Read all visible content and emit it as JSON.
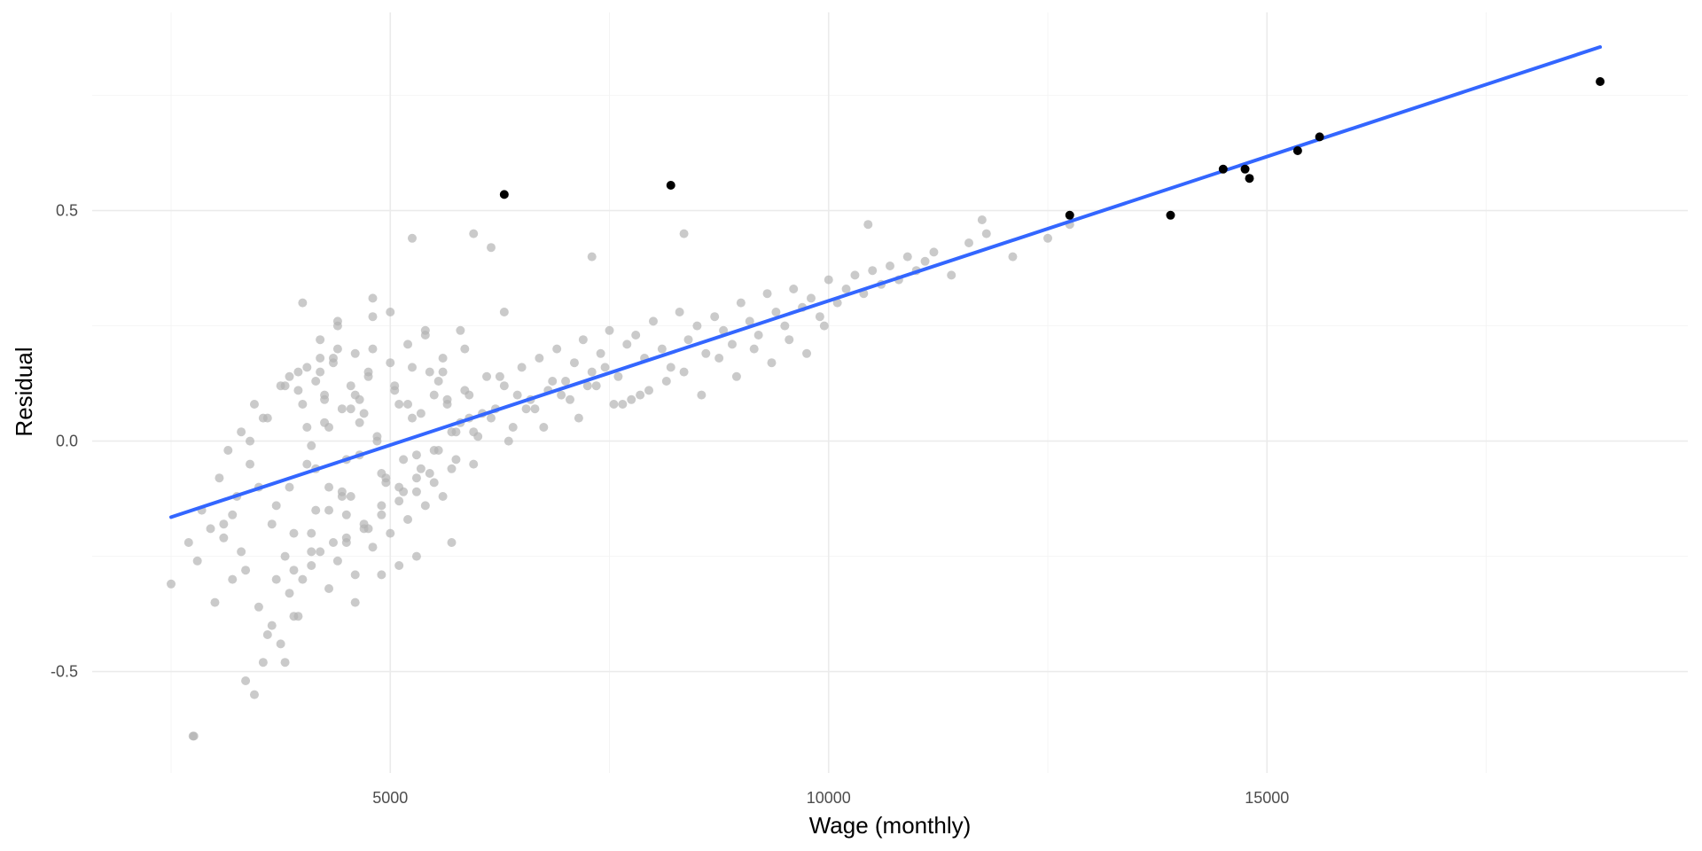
{
  "chart_data": {
    "type": "scatter",
    "title": "",
    "xlabel": "Wage (monthly)",
    "ylabel": "Residual",
    "xlim": [
      1600,
      19800
    ],
    "ylim": [
      -0.72,
      0.93
    ],
    "x_ticks": [
      5000,
      10000,
      15000
    ],
    "x_tick_labels": [
      "5000",
      "10000",
      "15000"
    ],
    "x_minor_ticks": [
      2500,
      7500,
      12500,
      17500
    ],
    "y_ticks": [
      -0.5,
      0.0,
      0.5
    ],
    "y_tick_labels": [
      "-0.5",
      "0.0",
      "0.5"
    ],
    "y_minor_ticks": [
      -0.25,
      0.25,
      0.75
    ],
    "grid": true,
    "legend": "none",
    "colors": {
      "points": "#b3b3b3",
      "highlight": "#000000",
      "fit_line": "#3366ff",
      "grid": "#ebebeb"
    },
    "series": [
      {
        "kind": "points",
        "color": "#b3b3b3",
        "opacity": 0.7,
        "x": [
          2500,
          2800,
          3100,
          2950,
          3200,
          3350,
          3500,
          3600,
          3800,
          3250,
          3050,
          2700,
          2850,
          3400,
          3700,
          3900,
          3650,
          3300,
          3150,
          3450,
          3550,
          3750,
          3850,
          3950,
          4050,
          4150,
          4250,
          4350,
          4450,
          4550,
          4650,
          4750,
          4850,
          4950,
          5050,
          5150,
          5250,
          5350,
          5450,
          5550,
          5650,
          5750,
          5850,
          5950,
          4100,
          4200,
          4300,
          4400,
          4500,
          4600,
          4700,
          4800,
          4900,
          5000,
          5100,
          5200,
          5300,
          5400,
          5500,
          5600,
          3800,
          3900,
          4000,
          4100,
          4200,
          4300,
          4400,
          4500,
          4600,
          4700,
          4800,
          4900,
          5000,
          5100,
          5200,
          5300,
          5400,
          5500,
          5600,
          5700,
          5800,
          5900,
          6000,
          6100,
          6200,
          6300,
          6400,
          6500,
          6600,
          6700,
          6800,
          6900,
          7000,
          7100,
          7200,
          7300,
          7400,
          7500,
          7600,
          7700,
          7800,
          7900,
          8000,
          8100,
          8200,
          8300,
          8400,
          8500,
          8600,
          8700,
          8800,
          8900,
          9000,
          9100,
          9200,
          9300,
          9400,
          9500,
          9600,
          9700,
          9800,
          9900,
          10000,
          10100,
          10200,
          10300,
          10400,
          10500,
          10600,
          10700,
          10800,
          10900,
          11000,
          11100,
          11200,
          11400,
          11600,
          11800,
          12100,
          12500,
          4050,
          4250,
          4450,
          4650,
          4850,
          5050,
          5250,
          5450,
          5650,
          5850,
          6050,
          6250,
          6450,
          6650,
          6850,
          7050,
          7250,
          7450,
          7650,
          7850,
          3600,
          3700,
          3800,
          3900,
          4000,
          4100,
          4200,
          4300,
          4400,
          4500,
          3500,
          3400,
          3300,
          3200,
          3100,
          3000,
          3650,
          3750,
          3850,
          3950,
          4150,
          4350,
          4550,
          4750,
          4950,
          5150,
          5350,
          5550,
          5750,
          5950,
          6150,
          6350,
          6550,
          6750,
          6950,
          7150,
          7350,
          7550,
          7750,
          7950,
          8150,
          8350,
          8550,
          8750,
          8950,
          9150,
          9350,
          9550,
          9750,
          9950,
          4000,
          4200,
          4400,
          4600,
          4800,
          5000,
          5200,
          5400,
          5600,
          5800,
          4100,
          4300,
          4500,
          4700,
          4900,
          5100,
          5300,
          5500,
          5700,
          5900,
          3850,
          3950,
          4050,
          4150,
          4250,
          4350,
          4450,
          4550,
          4650,
          4750,
          2750,
          2760,
          3350,
          3450,
          3550,
          4800,
          5250,
          5950,
          6150,
          7300,
          8350,
          10450,
          11750,
          12750,
          5300,
          5700,
          4900,
          4600,
          5100,
          6300
        ],
        "y": [
          -0.31,
          -0.26,
          -0.21,
          -0.19,
          -0.16,
          -0.28,
          -0.36,
          -0.42,
          -0.48,
          -0.12,
          -0.08,
          -0.22,
          -0.15,
          -0.05,
          -0.3,
          -0.38,
          -0.18,
          0.02,
          -0.02,
          0.08,
          0.05,
          0.12,
          -0.1,
          0.15,
          0.03,
          -0.06,
          0.1,
          0.18,
          -0.12,
          0.07,
          -0.03,
          0.14,
          0.01,
          -0.09,
          0.11,
          -0.04,
          0.16,
          0.06,
          -0.07,
          0.13,
          0.09,
          0.02,
          0.2,
          -0.05,
          -0.2,
          0.22,
          -0.15,
          0.25,
          -0.22,
          0.19,
          -0.18,
          0.27,
          -0.14,
          0.17,
          -0.1,
          0.21,
          -0.08,
          0.24,
          -0.02,
          0.18,
          -0.25,
          -0.28,
          -0.3,
          -0.27,
          -0.24,
          -0.32,
          -0.26,
          -0.21,
          -0.29,
          -0.19,
          -0.23,
          -0.16,
          -0.2,
          -0.13,
          -0.17,
          -0.11,
          -0.14,
          -0.09,
          -0.12,
          -0.06,
          0.04,
          0.1,
          0.01,
          0.14,
          0.07,
          0.12,
          0.03,
          0.16,
          0.09,
          0.18,
          0.11,
          0.2,
          0.13,
          0.17,
          0.22,
          0.15,
          0.19,
          0.24,
          0.14,
          0.21,
          0.23,
          0.18,
          0.26,
          0.2,
          0.16,
          0.28,
          0.22,
          0.25,
          0.19,
          0.27,
          0.24,
          0.21,
          0.3,
          0.26,
          0.23,
          0.32,
          0.28,
          0.25,
          0.33,
          0.29,
          0.31,
          0.27,
          0.35,
          0.3,
          0.33,
          0.36,
          0.32,
          0.37,
          0.34,
          0.38,
          0.35,
          0.4,
          0.37,
          0.39,
          0.41,
          0.36,
          0.43,
          0.45,
          0.4,
          0.44,
          -0.05,
          0.04,
          -0.11,
          0.09,
          0.0,
          0.12,
          0.05,
          0.15,
          0.08,
          0.11,
          0.06,
          0.14,
          0.1,
          0.07,
          0.13,
          0.09,
          0.12,
          0.16,
          0.08,
          0.1,
          0.05,
          -0.14,
          0.12,
          -0.2,
          0.08,
          -0.24,
          0.15,
          -0.1,
          0.2,
          -0.16,
          -0.1,
          0.0,
          -0.24,
          -0.3,
          -0.18,
          -0.35,
          -0.4,
          -0.44,
          -0.33,
          -0.38,
          -0.15,
          -0.22,
          -0.12,
          -0.19,
          -0.08,
          -0.11,
          -0.06,
          -0.02,
          -0.04,
          0.02,
          0.05,
          0.0,
          0.07,
          0.03,
          0.1,
          0.05,
          0.12,
          0.08,
          0.09,
          0.11,
          0.13,
          0.15,
          0.1,
          0.18,
          0.14,
          0.2,
          0.17,
          0.22,
          0.19,
          0.25,
          0.3,
          0.18,
          0.26,
          0.1,
          0.2,
          0.28,
          0.08,
          0.23,
          0.15,
          0.24,
          -0.01,
          0.03,
          -0.04,
          0.06,
          -0.07,
          0.08,
          -0.03,
          0.1,
          0.02,
          0.05,
          0.14,
          0.11,
          0.16,
          0.13,
          0.09,
          0.17,
          0.07,
          0.12,
          0.04,
          0.15,
          -0.64,
          -0.64,
          -0.52,
          -0.55,
          -0.48,
          0.31,
          0.44,
          0.45,
          0.42,
          0.4,
          0.45,
          0.47,
          0.48,
          0.47,
          -0.25,
          -0.22,
          -0.29,
          -0.35,
          -0.27,
          0.28
        ]
      },
      {
        "kind": "highlighted-points",
        "color": "#000000",
        "x": [
          6300,
          8200,
          12750,
          13900,
          14500,
          14750,
          14800,
          15350,
          15600,
          18800
        ],
        "y": [
          0.535,
          0.555,
          0.49,
          0.49,
          0.59,
          0.59,
          0.57,
          0.63,
          0.66,
          0.78
        ]
      },
      {
        "kind": "fit-line",
        "color": "#3366ff",
        "x": [
          2500,
          18800
        ],
        "y": [
          -0.165,
          0.855
        ]
      }
    ]
  }
}
